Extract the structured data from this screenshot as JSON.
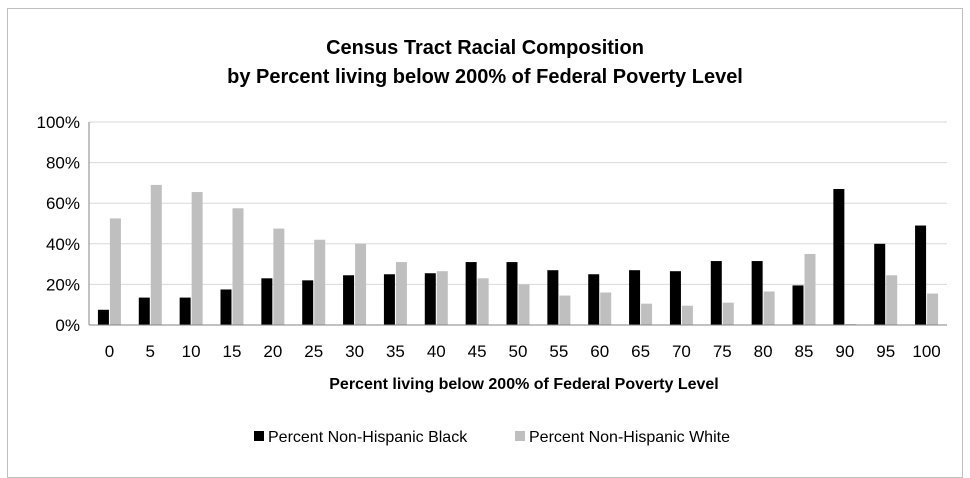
{
  "chart_data": {
    "type": "bar",
    "title": "Census Tract Racial Composition",
    "subtitle": "by Percent living below 200% of Federal Poverty Level",
    "xlabel": "Percent living below 200% of Federal Poverty Level",
    "ylabel": "",
    "ylim": [
      0,
      100
    ],
    "yticks": [
      "0%",
      "20%",
      "40%",
      "60%",
      "80%",
      "100%"
    ],
    "categories": [
      "0",
      "5",
      "10",
      "15",
      "20",
      "25",
      "30",
      "35",
      "40",
      "45",
      "50",
      "55",
      "60",
      "65",
      "70",
      "75",
      "80",
      "85",
      "90",
      "95",
      "100"
    ],
    "series": [
      {
        "name": "Percent Non-Hispanic Black",
        "color": "#000000",
        "values": [
          7.5,
          13.5,
          13.5,
          17.5,
          23,
          22,
          24.5,
          25,
          25.5,
          31,
          31,
          27,
          25,
          27,
          26.5,
          31.5,
          31.5,
          19.5,
          67,
          40,
          49
        ]
      },
      {
        "name": "Percent Non-Hispanic White",
        "color": "#bfbfbf",
        "values": [
          52.5,
          69,
          65.5,
          57.5,
          47.5,
          42,
          40,
          31,
          26.5,
          23,
          20,
          14.5,
          16,
          10.5,
          9.5,
          11,
          16.5,
          35,
          0.5,
          24.5,
          15.5
        ]
      }
    ],
    "grid": true,
    "legend": "bottom"
  }
}
